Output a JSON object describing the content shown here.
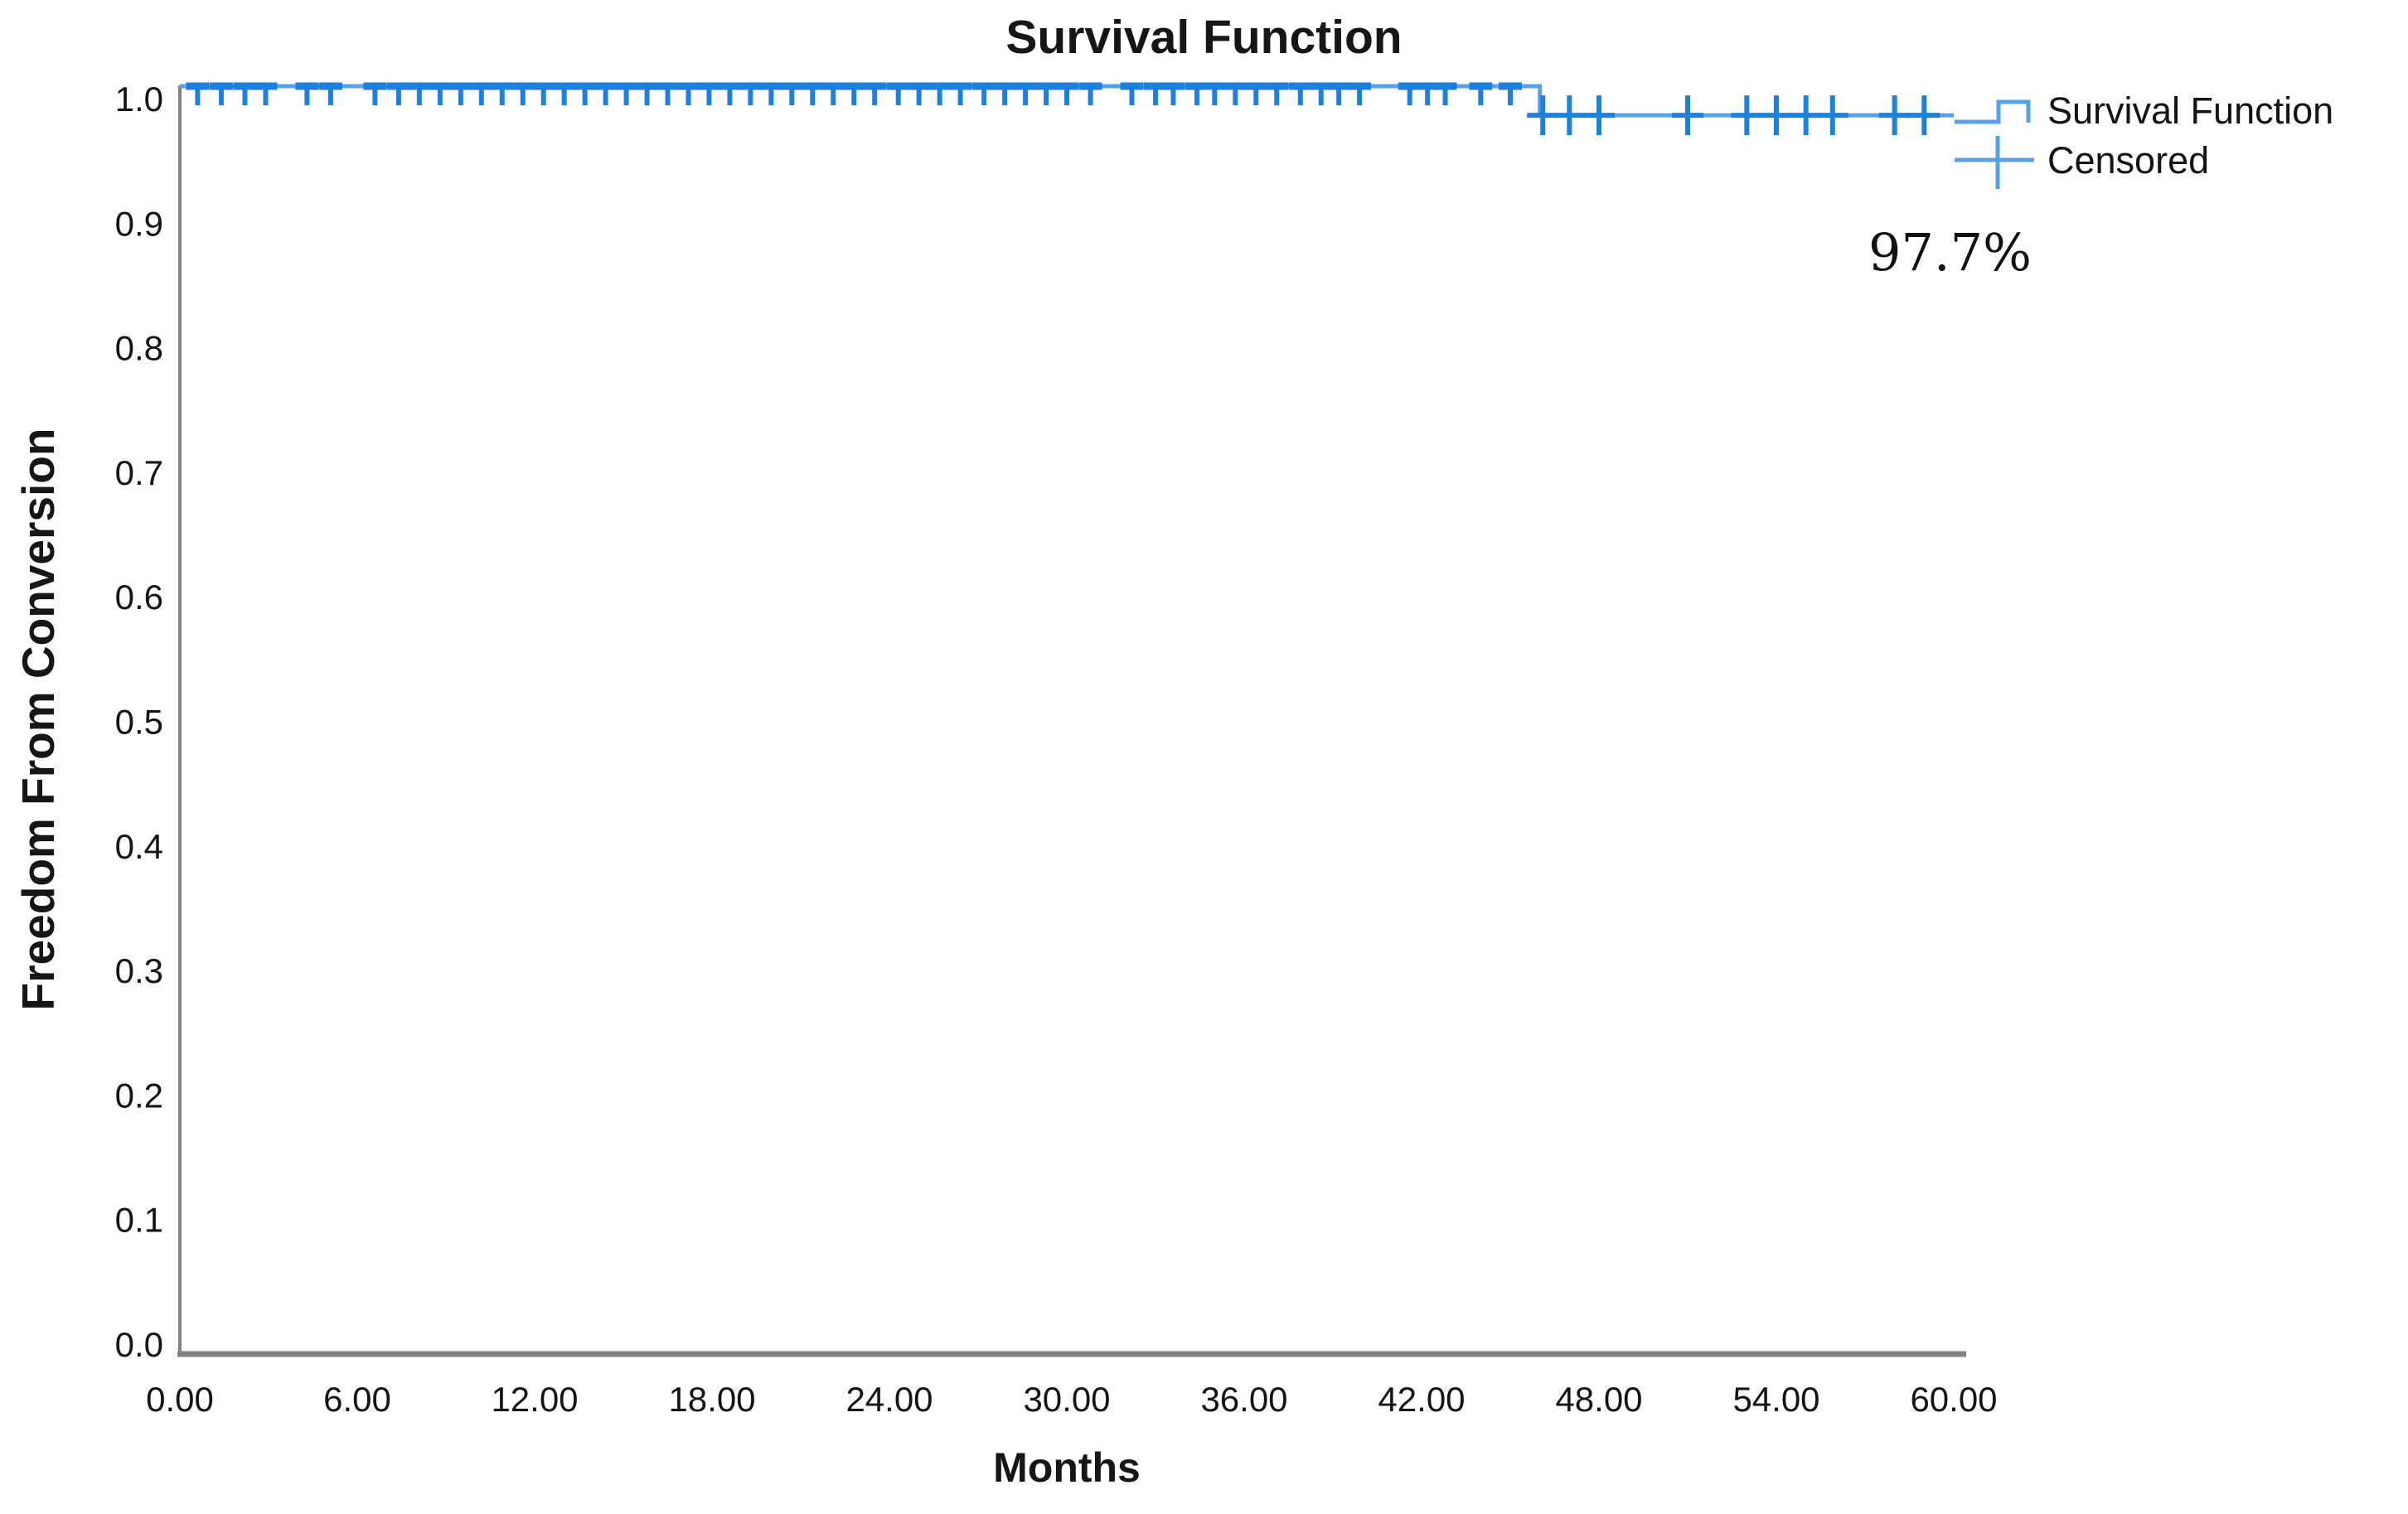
{
  "chart_data": {
    "type": "line",
    "subtype": "kaplan-meier-step",
    "title": "Survival Function",
    "xlabel": "Months",
    "ylabel": "Freedom From Conversion",
    "xlim": [
      0,
      60
    ],
    "ylim": [
      0.0,
      1.0
    ],
    "grid": false,
    "x_ticks": [
      "0.00",
      "6.00",
      "12.00",
      "18.00",
      "24.00",
      "30.00",
      "36.00",
      "42.00",
      "48.00",
      "54.00",
      "60.00"
    ],
    "x_tick_values": [
      0,
      6,
      12,
      18,
      24,
      30,
      36,
      42,
      48,
      54,
      60
    ],
    "y_ticks": [
      "0.0",
      "0.1",
      "0.2",
      "0.3",
      "0.4",
      "0.5",
      "0.6",
      "0.7",
      "0.8",
      "0.9",
      "1.0"
    ],
    "y_tick_values": [
      0.0,
      0.1,
      0.2,
      0.3,
      0.4,
      0.5,
      0.6,
      0.7,
      0.8,
      0.9,
      1.0
    ],
    "series": [
      {
        "name": "Survival Function",
        "type": "step",
        "points": [
          [
            0,
            1.0
          ],
          [
            46,
            1.0
          ],
          [
            46,
            0.977
          ],
          [
            60,
            0.977
          ]
        ]
      }
    ],
    "censored": {
      "at_survival_1_000": [
        0.6,
        1.4,
        2.2,
        2.9,
        4.3,
        5.1,
        6.6,
        7.4,
        8.1,
        8.8,
        9.5,
        10.2,
        10.9,
        11.6,
        12.3,
        13.0,
        13.7,
        14.4,
        15.1,
        15.8,
        16.5,
        17.2,
        17.9,
        18.6,
        19.3,
        20.0,
        20.7,
        21.4,
        22.1,
        22.8,
        23.5,
        24.3,
        25.0,
        25.7,
        26.4,
        27.2,
        27.9,
        28.6,
        29.3,
        30.0,
        30.8,
        32.2,
        33.0,
        33.6,
        34.4,
        35.0,
        35.7,
        36.4,
        37.1,
        37.9,
        38.6,
        39.2,
        39.9,
        41.6,
        42.2,
        42.8,
        44.0,
        45.0
      ],
      "at_survival_0_977": [
        46.1,
        47.0,
        48.0,
        51.0,
        53.0,
        54.0,
        55.0,
        55.9,
        58.0,
        59.0
      ]
    },
    "event_drop": {
      "x_month": 46.0,
      "from": 1.0,
      "to": 0.977
    },
    "annotation": {
      "text": "97.7%",
      "x_month": 54,
      "y_survival": 0.86
    },
    "legend": {
      "position": "top-right",
      "entries": [
        {
          "label": "Survival Function",
          "marker": "step-line"
        },
        {
          "label": "Censored",
          "marker": "plus"
        }
      ]
    },
    "colors": {
      "line": "#58a1e8",
      "marker": "#1d80dd",
      "axis": "#828282",
      "text": "#141414"
    }
  }
}
